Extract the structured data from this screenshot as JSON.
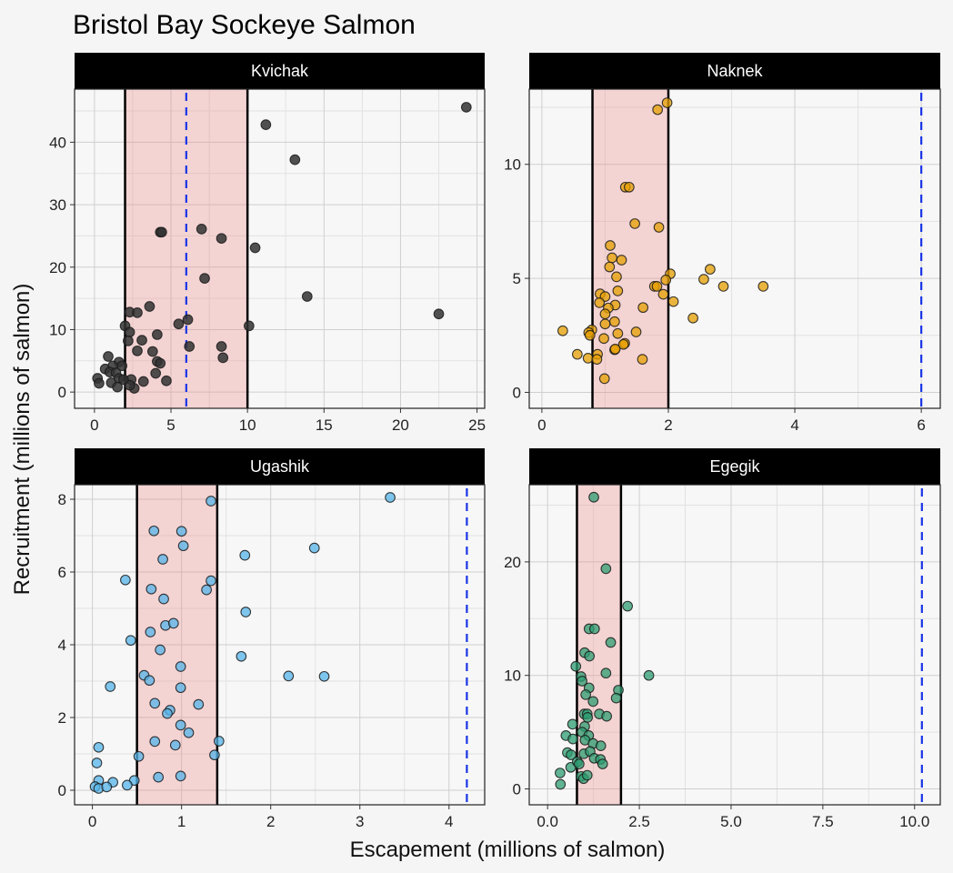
{
  "chart_data": {
    "type": "scatter",
    "title": "Bristol Bay Sockeye Salmon",
    "xlabel": "Escapement (millions of salmon)",
    "ylabel": "Recruitment (millions of salmon)",
    "grid": true,
    "facets": [
      {
        "name": "Kvichak",
        "color": "#333333",
        "point_alpha": 0.85,
        "xlim": [
          -1.3,
          25.5
        ],
        "ylim": [
          -2.6,
          48.5
        ],
        "xticks": [
          0,
          5,
          10,
          15,
          20,
          25
        ],
        "xtick_labels": [
          "0",
          "5",
          "10",
          "15",
          "20",
          "25"
        ],
        "yticks": [
          0,
          10,
          20,
          30,
          40
        ],
        "ytick_labels": [
          "0",
          "10",
          "20",
          "30",
          "40"
        ],
        "goal_range": [
          2,
          10
        ],
        "reference_line": 6,
        "points": [
          [
            24.3,
            45.6
          ],
          [
            11.2,
            42.8
          ],
          [
            13.1,
            37.2
          ],
          [
            4.3,
            25.6
          ],
          [
            4.4,
            25.6
          ],
          [
            7.0,
            26.1
          ],
          [
            8.3,
            24.6
          ],
          [
            10.5,
            23.1
          ],
          [
            7.2,
            18.2
          ],
          [
            13.9,
            15.3
          ],
          [
            22.5,
            12.5
          ],
          [
            10.1,
            10.6
          ],
          [
            3.6,
            13.7
          ],
          [
            2.3,
            12.8
          ],
          [
            2.8,
            12.7
          ],
          [
            2.0,
            10.6
          ],
          [
            5.5,
            10.9
          ],
          [
            6.1,
            11.6
          ],
          [
            2.3,
            9.6
          ],
          [
            4.1,
            9.2
          ],
          [
            2.2,
            8.2
          ],
          [
            3.1,
            8.3
          ],
          [
            6.2,
            7.3
          ],
          [
            8.3,
            7.3
          ],
          [
            8.4,
            5.5
          ],
          [
            2.8,
            6.6
          ],
          [
            3.8,
            6.5
          ],
          [
            4.1,
            4.9
          ],
          [
            4.3,
            4.6
          ],
          [
            4.0,
            3.0
          ],
          [
            3.2,
            1.7
          ],
          [
            4.7,
            1.8
          ],
          [
            2.4,
            2.0
          ],
          [
            2.6,
            0.6
          ],
          [
            2.3,
            1.1
          ],
          [
            0.9,
            5.7
          ],
          [
            1.6,
            4.8
          ],
          [
            1.8,
            4.2
          ],
          [
            0.7,
            3.7
          ],
          [
            1.2,
            4.2
          ],
          [
            1.0,
            3.2
          ],
          [
            1.4,
            3.1
          ],
          [
            1.6,
            2.2
          ],
          [
            0.2,
            2.2
          ],
          [
            0.3,
            1.4
          ],
          [
            1.1,
            1.5
          ],
          [
            1.5,
            0.8
          ],
          [
            1.9,
            2.0
          ]
        ]
      },
      {
        "name": "Naknek",
        "color": "#E69F00",
        "point_alpha": 0.75,
        "xlim": [
          -0.2,
          6.3
        ],
        "ylim": [
          -0.7,
          13.3
        ],
        "xticks": [
          0,
          2,
          4,
          6
        ],
        "xtick_labels": [
          "0",
          "2",
          "4",
          "6"
        ],
        "yticks": [
          0,
          5,
          10
        ],
        "ytick_labels": [
          "0",
          "5",
          "10"
        ],
        "goal_range": [
          0.8,
          2.0
        ],
        "reference_line": 6.0,
        "points": [
          [
            1.98,
            12.7
          ],
          [
            1.83,
            12.4
          ],
          [
            1.32,
            9.0
          ],
          [
            1.38,
            9.0
          ],
          [
            1.47,
            7.4
          ],
          [
            1.85,
            7.24
          ],
          [
            1.08,
            6.44
          ],
          [
            1.11,
            5.9
          ],
          [
            1.26,
            5.8
          ],
          [
            1.07,
            5.5
          ],
          [
            1.18,
            5.07
          ],
          [
            2.03,
            5.2
          ],
          [
            1.96,
            4.93
          ],
          [
            1.78,
            4.65
          ],
          [
            1.82,
            4.65
          ],
          [
            1.92,
            4.3
          ],
          [
            2.08,
            3.98
          ],
          [
            2.56,
            4.96
          ],
          [
            2.66,
            5.4
          ],
          [
            2.87,
            4.65
          ],
          [
            3.5,
            4.65
          ],
          [
            2.39,
            3.26
          ],
          [
            0.92,
            4.32
          ],
          [
            1.0,
            4.2
          ],
          [
            1.2,
            4.45
          ],
          [
            0.91,
            3.93
          ],
          [
            1.16,
            3.83
          ],
          [
            1.05,
            3.7
          ],
          [
            1.0,
            3.44
          ],
          [
            1.6,
            3.72
          ],
          [
            1.15,
            3.1
          ],
          [
            1.0,
            3.0
          ],
          [
            0.79,
            2.74
          ],
          [
            0.33,
            2.7
          ],
          [
            0.74,
            2.62
          ],
          [
            0.76,
            2.5
          ],
          [
            1.2,
            2.58
          ],
          [
            1.49,
            2.65
          ],
          [
            0.98,
            2.36
          ],
          [
            1.31,
            2.15
          ],
          [
            1.29,
            2.1
          ],
          [
            1.15,
            1.87
          ],
          [
            1.16,
            1.9
          ],
          [
            0.56,
            1.67
          ],
          [
            0.88,
            1.67
          ],
          [
            0.73,
            1.5
          ],
          [
            0.87,
            1.45
          ],
          [
            1.59,
            1.45
          ],
          [
            0.99,
            0.6
          ]
        ]
      },
      {
        "name": "Ugashik",
        "color": "#56B4E9",
        "point_alpha": 0.75,
        "xlim": [
          -0.2,
          4.4
        ],
        "ylim": [
          -0.4,
          8.4
        ],
        "xticks": [
          0,
          1,
          2,
          3,
          4
        ],
        "xtick_labels": [
          "0",
          "1",
          "2",
          "3",
          "4"
        ],
        "yticks": [
          0,
          2,
          4,
          6,
          8
        ],
        "ytick_labels": [
          "0",
          "2",
          "4",
          "6",
          "8"
        ],
        "goal_range": [
          0.5,
          1.4
        ],
        "reference_line": 4.2,
        "points": [
          [
            3.34,
            8.05
          ],
          [
            1.33,
            7.95
          ],
          [
            0.69,
            7.13
          ],
          [
            1.0,
            7.12
          ],
          [
            1.02,
            6.72
          ],
          [
            0.79,
            6.35
          ],
          [
            2.49,
            6.66
          ],
          [
            1.71,
            6.46
          ],
          [
            0.37,
            5.78
          ],
          [
            1.33,
            5.76
          ],
          [
            0.66,
            5.53
          ],
          [
            1.28,
            5.51
          ],
          [
            0.8,
            5.26
          ],
          [
            1.72,
            4.9
          ],
          [
            0.82,
            4.53
          ],
          [
            0.91,
            4.59
          ],
          [
            0.65,
            4.35
          ],
          [
            0.43,
            4.12
          ],
          [
            0.76,
            3.86
          ],
          [
            1.67,
            3.68
          ],
          [
            0.99,
            3.4
          ],
          [
            0.58,
            3.16
          ],
          [
            0.64,
            3.02
          ],
          [
            2.2,
            3.14
          ],
          [
            2.6,
            3.13
          ],
          [
            0.2,
            2.85
          ],
          [
            0.99,
            2.82
          ],
          [
            0.7,
            2.39
          ],
          [
            0.87,
            2.2
          ],
          [
            0.84,
            2.11
          ],
          [
            1.19,
            2.36
          ],
          [
            0.99,
            1.79
          ],
          [
            1.08,
            1.58
          ],
          [
            0.7,
            1.34
          ],
          [
            0.93,
            1.24
          ],
          [
            1.42,
            1.35
          ],
          [
            0.07,
            1.18
          ],
          [
            0.05,
            0.75
          ],
          [
            0.52,
            0.93
          ],
          [
            1.37,
            0.97
          ],
          [
            0.74,
            0.36
          ],
          [
            0.99,
            0.39
          ],
          [
            0.07,
            0.27
          ],
          [
            0.23,
            0.22
          ],
          [
            0.47,
            0.27
          ],
          [
            0.39,
            0.14
          ],
          [
            0.03,
            0.1
          ],
          [
            0.07,
            0.05
          ],
          [
            0.16,
            0.09
          ]
        ]
      },
      {
        "name": "Egegik",
        "color": "#2E9E72",
        "point_alpha": 0.75,
        "xlim": [
          -0.5,
          10.7
        ],
        "ylim": [
          -1.4,
          26.8
        ],
        "xticks": [
          0.0,
          2.5,
          5.0,
          7.5,
          10.0
        ],
        "xtick_labels": [
          "0.0",
          "2.5",
          "5.0",
          "7.5",
          "10.0"
        ],
        "yticks": [
          0,
          10,
          20
        ],
        "ytick_labels": [
          "0",
          "10",
          "20"
        ],
        "goal_range": [
          0.8,
          2.0
        ],
        "reference_line": 10.2,
        "points": [
          [
            1.26,
            25.7
          ],
          [
            1.59,
            19.4
          ],
          [
            2.18,
            16.1
          ],
          [
            1.13,
            14.1
          ],
          [
            1.28,
            14.1
          ],
          [
            1.72,
            12.9
          ],
          [
            1.01,
            12.0
          ],
          [
            1.14,
            11.7
          ],
          [
            0.77,
            10.8
          ],
          [
            1.59,
            10.2
          ],
          [
            2.76,
            10.0
          ],
          [
            0.91,
            9.9
          ],
          [
            0.94,
            9.5
          ],
          [
            1.13,
            8.9
          ],
          [
            1.04,
            8.3
          ],
          [
            1.93,
            8.7
          ],
          [
            1.87,
            8.0
          ],
          [
            1.24,
            7.7
          ],
          [
            1.0,
            6.6
          ],
          [
            1.08,
            6.6
          ],
          [
            1.09,
            6.3
          ],
          [
            1.41,
            6.6
          ],
          [
            1.61,
            6.4
          ],
          [
            0.68,
            5.7
          ],
          [
            1.01,
            5.5
          ],
          [
            0.94,
            5.0
          ],
          [
            1.12,
            4.7
          ],
          [
            0.5,
            4.7
          ],
          [
            0.69,
            4.4
          ],
          [
            1.02,
            4.3
          ],
          [
            1.24,
            4.0
          ],
          [
            1.45,
            3.8
          ],
          [
            0.54,
            3.2
          ],
          [
            0.64,
            3.0
          ],
          [
            0.99,
            3.1
          ],
          [
            1.16,
            3.3
          ],
          [
            1.27,
            2.7
          ],
          [
            1.44,
            2.6
          ],
          [
            1.5,
            2.2
          ],
          [
            0.63,
            1.9
          ],
          [
            0.81,
            2.4
          ],
          [
            0.86,
            2.2
          ],
          [
            0.34,
            1.4
          ],
          [
            0.91,
            1.1
          ],
          [
            0.98,
            0.9
          ],
          [
            1.08,
            1.2
          ],
          [
            0.35,
            0.4
          ]
        ]
      }
    ]
  }
}
